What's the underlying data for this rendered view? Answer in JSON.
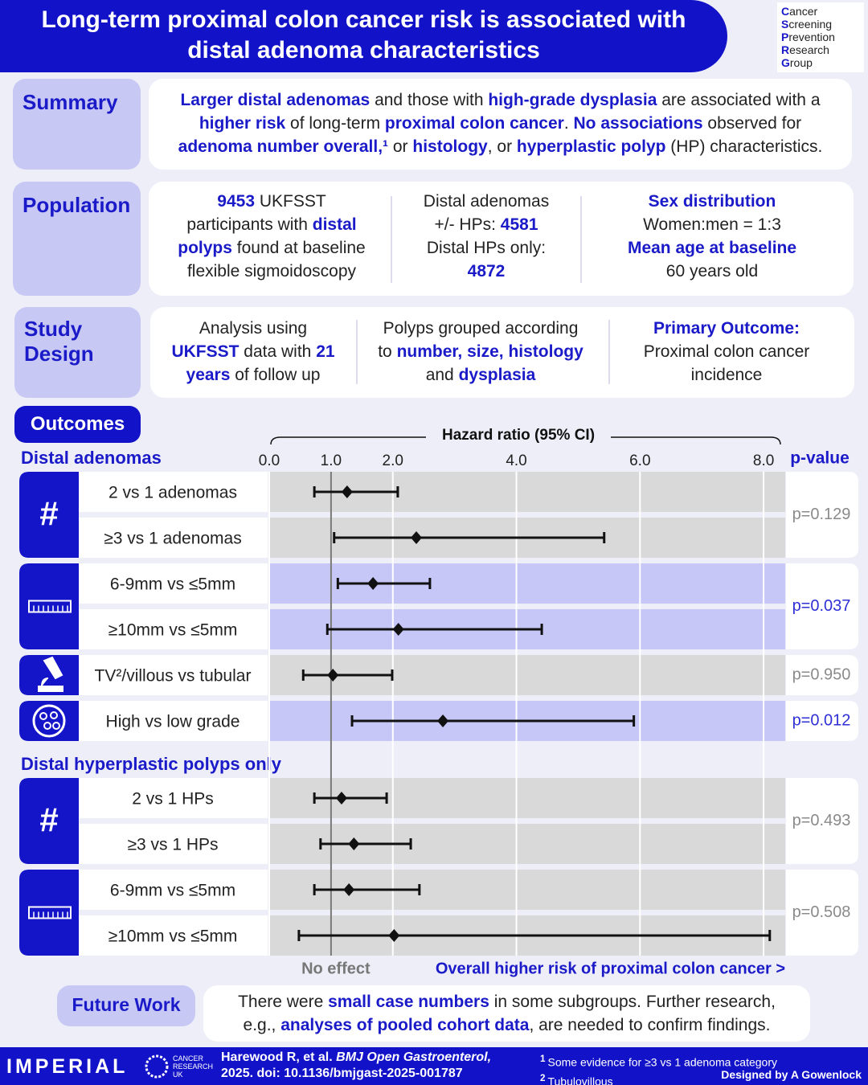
{
  "header": {
    "title_lines": [
      "Long-term proximal colon cancer risk is associated with",
      "distal adenoma characteristics"
    ],
    "logo": [
      "Cancer",
      "Screening",
      "Prevention",
      "Research",
      "Group"
    ]
  },
  "summary": {
    "label": "Summary",
    "lines": [
      [
        {
          "em": "Larger distal adenomas"
        },
        " and those with ",
        {
          "em": "high-grade dysplasia"
        },
        " are associated with a"
      ],
      [
        {
          "em": "higher risk"
        },
        " of long-term ",
        {
          "em": "proximal colon cancer"
        },
        ". ",
        {
          "em": "No associations"
        },
        " observed for"
      ],
      [
        {
          "em": "adenoma number overall,¹"
        },
        " or ",
        {
          "em": "histology"
        },
        ", or ",
        {
          "em": "hyperplastic polyp"
        },
        " (HP) characteristics."
      ]
    ]
  },
  "population": {
    "label": "Population",
    "columns": [
      [
        [
          {
            "em": "9453"
          },
          " UKFSST"
        ],
        [
          "participants with ",
          {
            "em": "distal"
          }
        ],
        [
          {
            "em": "polyps"
          },
          " found at baseline"
        ],
        [
          "flexible sigmoidoscopy"
        ]
      ],
      [
        [
          "Distal adenomas"
        ],
        [
          "+/- HPs: ",
          {
            "em": "4581"
          }
        ],
        [
          "Distal HPs only:"
        ],
        [
          {
            "em": "4872"
          }
        ]
      ],
      [
        [
          {
            "em": "Sex distribution"
          }
        ],
        [
          "Women:men = 1:3"
        ],
        [
          {
            "em": "Mean age at baseline"
          }
        ],
        [
          "60 years old"
        ]
      ]
    ]
  },
  "study_design": {
    "label_lines": [
      "Study",
      "Design"
    ],
    "columns": [
      [
        [
          "Analysis using"
        ],
        [
          {
            "em": "UKFSST"
          },
          " data with ",
          {
            "em": "21"
          }
        ],
        [
          {
            "em": "years"
          },
          " of follow up"
        ]
      ],
      [
        [
          "Polyps grouped according"
        ],
        [
          "to ",
          {
            "em": "number, size, histology"
          }
        ],
        [
          "and ",
          {
            "em": "dysplasia"
          }
        ]
      ],
      [
        [
          {
            "em": "Primary Outcome:"
          }
        ],
        [
          "Proximal colon cancer"
        ],
        [
          "incidence"
        ]
      ]
    ]
  },
  "outcomes": {
    "label": "Outcomes"
  },
  "chart_data": {
    "type": "forest",
    "title": "Hazard ratio (95% CI)",
    "p_value_header": "p-value",
    "xlim": [
      0,
      8.35
    ],
    "xticks": [
      {
        "value": 0,
        "label": "0.0"
      },
      {
        "value": 1,
        "label": "1.0"
      },
      {
        "value": 2,
        "label": "2.0"
      },
      {
        "value": 4,
        "label": "4.0"
      },
      {
        "value": 6,
        "label": "6.0"
      },
      {
        "value": 8,
        "label": "8.0"
      }
    ],
    "reference_line": 1,
    "reference_label": "No effect",
    "direction_label": "Overall higher risk of proximal colon cancer >",
    "colors": {
      "neutral": "#d9d9d9",
      "highlight": "#c6c6f7",
      "p_neutral": "#8a8a8a",
      "p_highlight": "#2f2fd6"
    },
    "sections": [
      {
        "title": "Distal adenomas",
        "groups": [
          {
            "icon_text": "#",
            "p_value": "p=0.129",
            "highlight": false,
            "rows": [
              {
                "label": "2 vs 1 adenomas",
                "hr": 1.26,
                "lower": 0.73,
                "upper": 2.08
              },
              {
                "label": "≥3 vs 1 adenomas",
                "hr": 2.38,
                "lower": 1.05,
                "upper": 5.42
              }
            ]
          },
          {
            "icon": "ruler",
            "p_value": "p=0.037",
            "highlight": true,
            "rows": [
              {
                "label": "6-9mm vs ≤5mm",
                "hr": 1.68,
                "lower": 1.11,
                "upper": 2.6
              },
              {
                "label": "≥10mm vs ≤5mm",
                "hr": 2.09,
                "lower": 0.94,
                "upper": 4.41
              }
            ]
          },
          {
            "icon": "microscope",
            "p_value": "p=0.950",
            "highlight": false,
            "rows": [
              {
                "label": "TV²/villous vs tubular",
                "hr": 1.03,
                "lower": 0.55,
                "upper": 1.99
              }
            ]
          },
          {
            "icon": "cell",
            "p_value": "p=0.012",
            "highlight": true,
            "rows": [
              {
                "label": "High vs low grade",
                "hr": 2.81,
                "lower": 1.34,
                "upper": 5.9
              }
            ]
          }
        ]
      },
      {
        "title": "Distal hyperplastic polyps only",
        "groups": [
          {
            "icon_text": "#",
            "p_value": "p=0.493",
            "highlight": false,
            "rows": [
              {
                "label": "2 vs 1 HPs",
                "hr": 1.17,
                "lower": 0.73,
                "upper": 1.9
              },
              {
                "label": "≥3 vs 1 HPs",
                "hr": 1.37,
                "lower": 0.83,
                "upper": 2.29
              }
            ]
          },
          {
            "icon": "ruler",
            "p_value": "p=0.508",
            "highlight": false,
            "rows": [
              {
                "label": "6-9mm vs ≤5mm",
                "hr": 1.29,
                "lower": 0.73,
                "upper": 2.43
              },
              {
                "label": "≥10mm vs ≤5mm",
                "hr": 2.02,
                "lower": 0.48,
                "upper": 8.1
              }
            ]
          }
        ]
      }
    ]
  },
  "future_work": {
    "label": "Future Work",
    "lines": [
      [
        "There were ",
        {
          "em": "small case numbers"
        },
        " in some subgroups. Further research,"
      ],
      [
        "e.g., ",
        {
          "em": "analyses of pooled cohort data"
        },
        ", are needed to confirm findings."
      ]
    ]
  },
  "footer": {
    "logo": "IMPERIAL",
    "cruk": [
      "CANCER",
      "RESEARCH",
      "UK"
    ],
    "citation": [
      [
        "Harewood R, et al. ",
        {
          "i": "BMJ Open Gastroenterol,"
        }
      ],
      [
        "2025. doi: 10.1136/bmjgast-2025-001787"
      ]
    ],
    "notes": [
      {
        "mark": "1",
        "text": "Some evidence for ≥3 vs 1 adenoma category"
      },
      {
        "mark": "2",
        "text": "Tubulovillous"
      }
    ],
    "credit": "Designed by A Gowenlock"
  }
}
